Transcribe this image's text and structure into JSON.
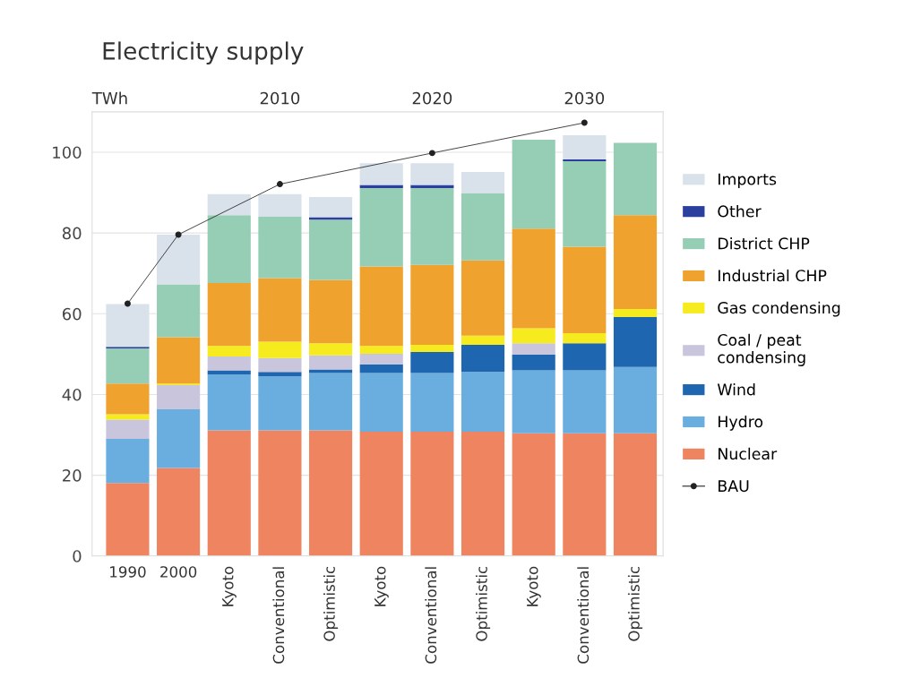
{
  "chart_data": {
    "type": "bar",
    "title": "Electricity supply",
    "ylabel": "TWh",
    "stacked": true,
    "categories": [
      "1990",
      "2000",
      "Kyoto",
      "Conventional",
      "Optimistic",
      "Kyoto",
      "Conventional",
      "Optimistic",
      "Kyoto",
      "Conventional",
      "Optimistic"
    ],
    "annotations": [
      "2010",
      "2020",
      "2030"
    ],
    "series": [
      {
        "name": "Nuclear",
        "color": "#ef8460",
        "values": [
          18.1,
          21.8,
          31.1,
          31.1,
          31.1,
          30.8,
          30.8,
          30.8,
          30.4,
          30.4,
          30.4
        ]
      },
      {
        "name": "Hydro",
        "color": "#6aaee0",
        "values": [
          10.9,
          14.5,
          13.8,
          13.4,
          14.2,
          14.5,
          14.5,
          14.8,
          15.6,
          15.6,
          16.4
        ]
      },
      {
        "name": "Wind",
        "color": "#1f66b0",
        "values": [
          0,
          0,
          1.1,
          1.1,
          0.9,
          2.2,
          5.2,
          6.7,
          3.9,
          6.7,
          12.4
        ]
      },
      {
        "name": "Coal / peat\ncondensing",
        "color": "#c9c5dc",
        "values": [
          4.8,
          6.0,
          3.4,
          3.4,
          3.5,
          2.6,
          0,
          0,
          2.8,
          0,
          0
        ]
      },
      {
        "name": "Gas condensing",
        "color": "#f5eb1e",
        "values": [
          1.3,
          0.4,
          2.6,
          4.1,
          3.0,
          1.9,
          1.8,
          2.3,
          3.7,
          2.5,
          2.0
        ]
      },
      {
        "name": "Industrial CHP",
        "color": "#f0a22e",
        "values": [
          7.6,
          11.5,
          15.6,
          15.7,
          15.7,
          19.7,
          19.8,
          18.6,
          24.7,
          21.4,
          23.2
        ]
      },
      {
        "name": "District CHP",
        "color": "#96cdb5",
        "values": [
          8.7,
          13.1,
          16.8,
          15.2,
          14.9,
          19.4,
          19.0,
          16.7,
          22.0,
          21.2,
          17.9
        ]
      },
      {
        "name": "Other",
        "color": "#2b3f9e",
        "values": [
          0.4,
          0,
          0,
          0,
          0.6,
          0.8,
          0.8,
          0,
          0,
          0.4,
          0
        ]
      },
      {
        "name": "Imports",
        "color": "#d9e1ea",
        "values": [
          10.6,
          12.3,
          5.2,
          5.6,
          5.0,
          5.4,
          5.4,
          5.2,
          0,
          6.0,
          0
        ]
      },
      {
        "name": "BAU",
        "type": "line",
        "color": "#222222",
        "marker": "circle",
        "values": [
          62.5,
          79.6,
          null,
          92.1,
          null,
          null,
          99.8,
          null,
          null,
          107.3,
          null
        ]
      }
    ],
    "ylim": [
      0,
      110
    ],
    "yticks": [
      0,
      20,
      40,
      60,
      80,
      100
    ],
    "grid": "y",
    "legend": "right"
  }
}
